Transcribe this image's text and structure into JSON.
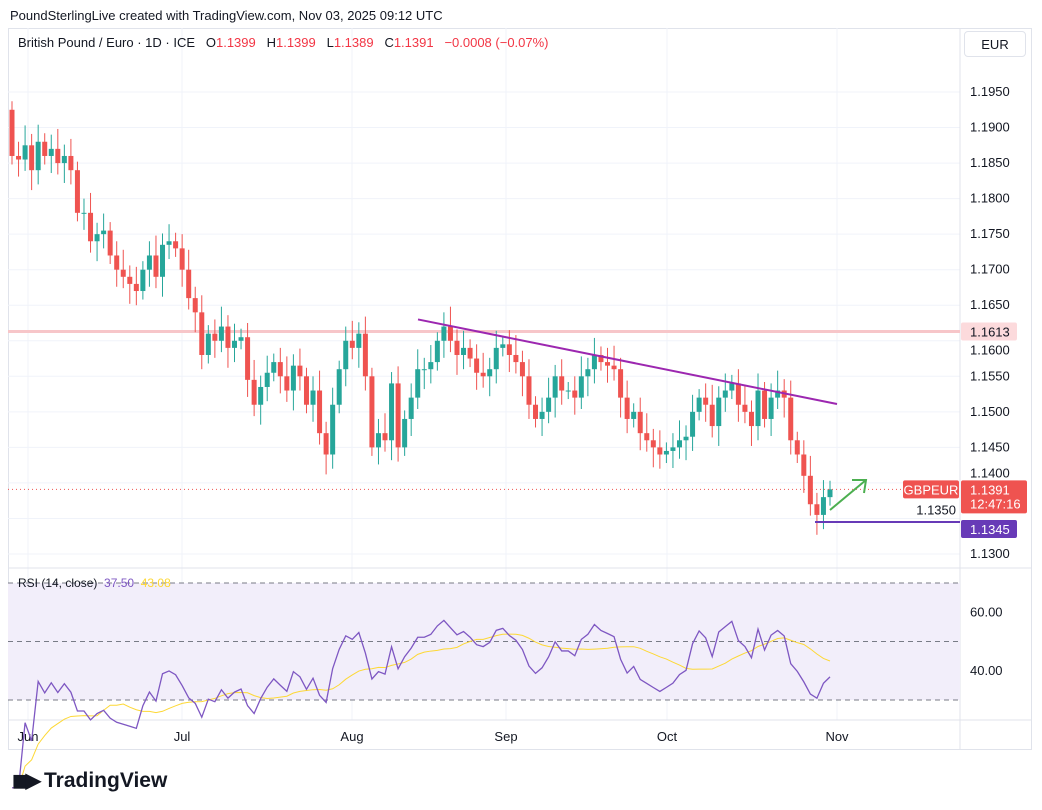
{
  "credit": "PoundSterlingLive created with TradingView.com, Nov 03, 2025 09:12 UTC",
  "legend": {
    "symbol": "British Pound / Euro · 1D · ICE",
    "o_label": "O",
    "o": "1.1399",
    "h_label": "H",
    "h": "1.1399",
    "l_label": "L",
    "l": "1.1389",
    "c_label": "C",
    "c": "1.1391",
    "change": "−0.0008 (−0.07%)"
  },
  "currency": "EUR",
  "price_axis": [
    "1.1950",
    "1.1900",
    "1.1850",
    "1.1800",
    "1.1750",
    "1.1700",
    "1.1650",
    "1.1600",
    "1.1550",
    "1.1500",
    "1.1450",
    "1.1400",
    "1.1350",
    "1.1300"
  ],
  "labels": {
    "symbol_tag": "GBPEUR",
    "last_price": "1.1391",
    "countdown": "12:47:16",
    "support": "1.1345",
    "resistance": "1.1613"
  },
  "rsi": {
    "label": "RSI (14, close)",
    "value": "37.50",
    "ma_value": "43.08",
    "axis": [
      "60.00",
      "40.00"
    ]
  },
  "x_axis": [
    "Jun",
    "Jul",
    "Aug",
    "Sep",
    "Oct",
    "Nov"
  ],
  "logo": "TradingView",
  "colors": {
    "up": "#26a69a",
    "down": "#ef5350",
    "trend": "#9c27b0",
    "support": "#673ab7",
    "resistance": "#f7c6c9",
    "rsi": "#7e57c2",
    "rsi_ma": "#fdd835",
    "arrow": "#4caf50"
  },
  "chart_data": {
    "type": "candlestick",
    "title": "British Pound / Euro · 1D · ICE",
    "ylim": [
      1.1275,
      1.1985
    ],
    "first_open": 1.1925,
    "closes": [
      1.186,
      1.1855,
      1.1875,
      1.184,
      1.188,
      1.186,
      1.187,
      1.185,
      1.186,
      1.184,
      1.178,
      1.178,
      1.174,
      1.175,
      1.1755,
      1.172,
      1.17,
      1.169,
      1.168,
      1.167,
      1.17,
      1.172,
      1.169,
      1.1735,
      1.174,
      1.173,
      1.17,
      1.166,
      1.164,
      1.158,
      1.161,
      1.16,
      1.162,
      1.159,
      1.16,
      1.1605,
      1.1545,
      1.151,
      1.1535,
      1.1555,
      1.157,
      1.155,
      1.153,
      1.1565,
      1.155,
      1.151,
      1.153,
      1.147,
      1.144,
      1.151,
      1.156,
      1.16,
      1.159,
      1.161,
      1.155,
      1.145,
      1.147,
      1.146,
      1.154,
      1.145,
      1.149,
      1.152,
      1.156,
      1.156,
      1.157,
      1.16,
      1.162,
      1.16,
      1.158,
      1.159,
      1.1575,
      1.1555,
      1.155,
      1.156,
      1.159,
      1.1595,
      1.158,
      1.157,
      1.155,
      1.151,
      1.149,
      1.15,
      1.152,
      1.155,
      1.153,
      1.153,
      1.152,
      1.155,
      1.156,
      1.158,
      1.157,
      1.1565,
      1.156,
      1.152,
      1.149,
      1.15,
      1.147,
      1.146,
      1.145,
      1.144,
      1.1445,
      1.145,
      1.146,
      1.1465,
      1.15,
      1.152,
      1.151,
      1.148,
      1.152,
      1.153,
      1.154,
      1.151,
      1.15,
      1.148,
      1.153,
      1.149,
      1.152,
      1.153,
      1.152,
      1.146,
      1.144,
      1.141,
      1.137,
      1.1355,
      1.138,
      1.1391
    ],
    "trendline": [
      1.163,
      1.1511
    ],
    "resistance": 1.1613,
    "support": 1.1345,
    "rsi_ylim": [
      30,
      70
    ]
  }
}
